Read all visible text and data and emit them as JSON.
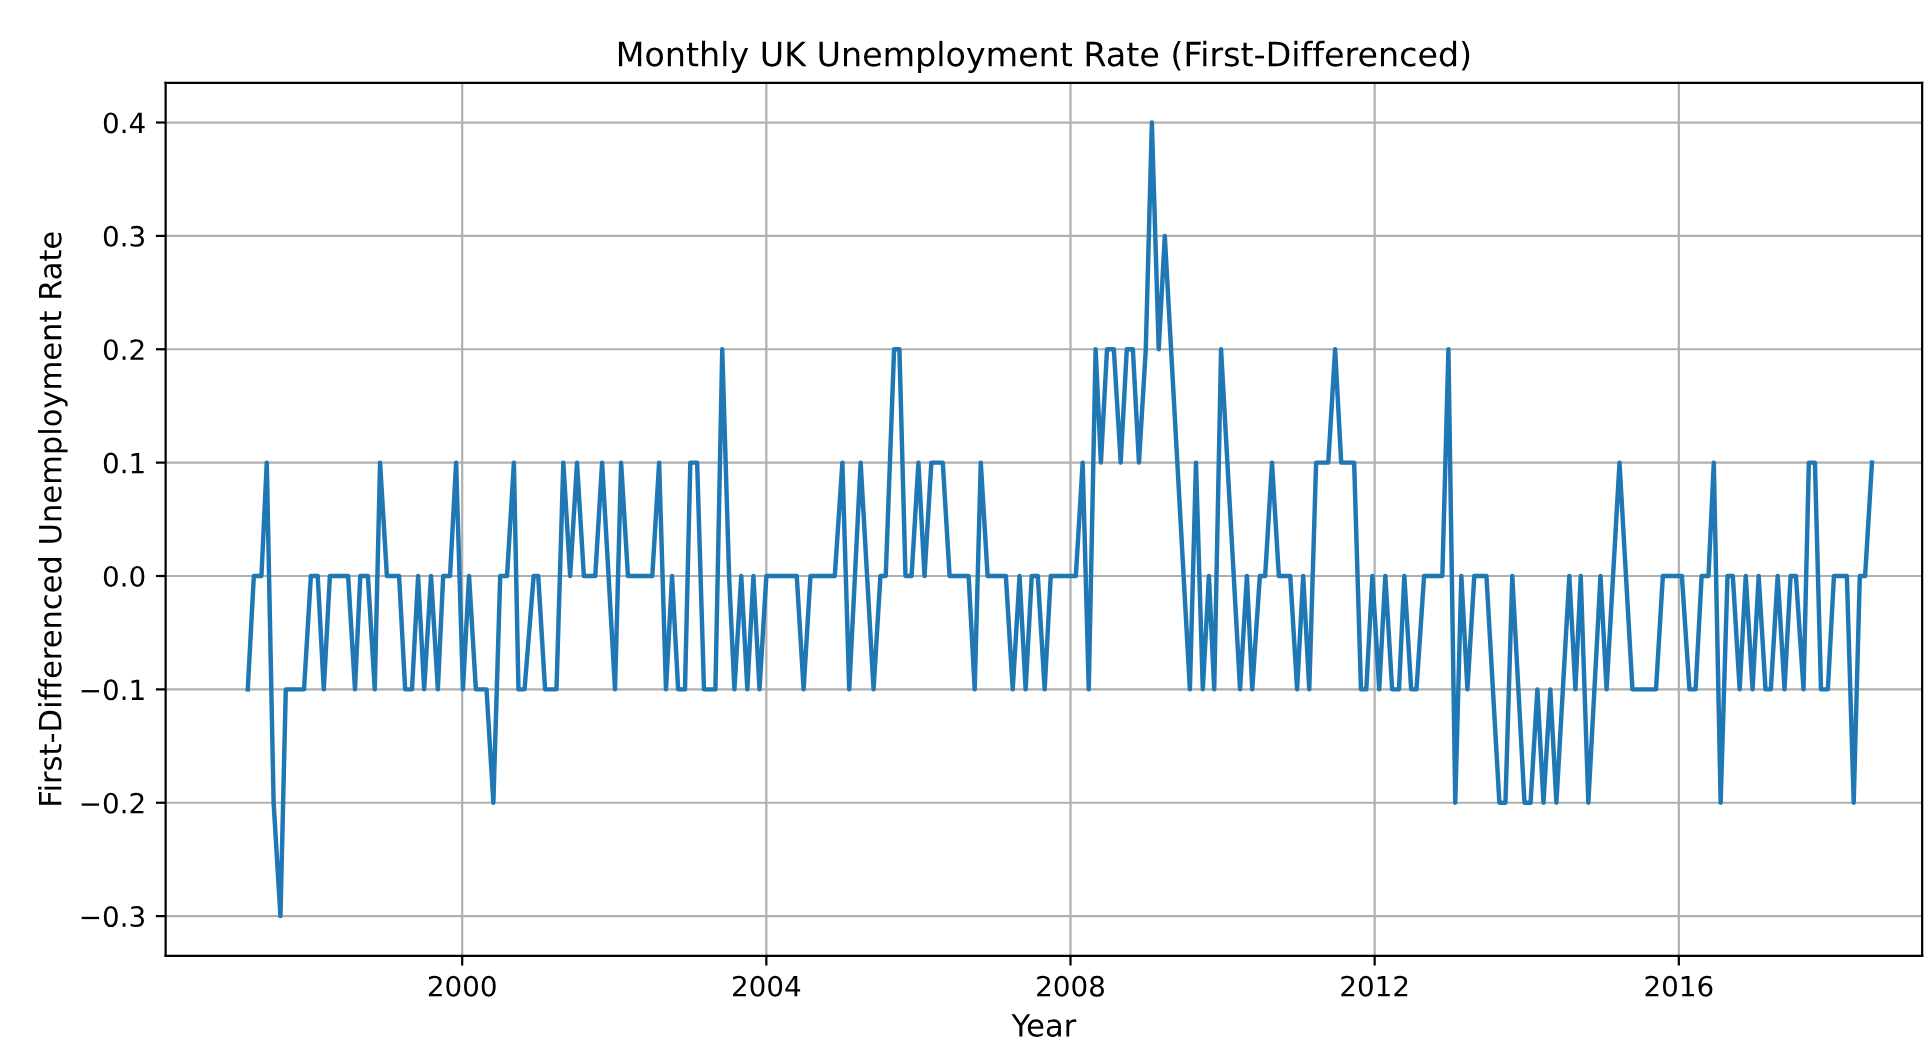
{
  "chart_data": {
    "type": "line",
    "title": "Monthly UK Unemployment Rate (First-Differenced)",
    "xlabel": "Year",
    "ylabel": "First-Differenced Unemployment Rate",
    "x": [
      1997.18,
      1997.26,
      1997.36,
      1997.43,
      1997.52,
      1997.61,
      1997.68,
      1997.92,
      1998.01,
      1998.1,
      1998.18,
      1998.26,
      1998.5,
      1998.59,
      1998.66,
      1998.76,
      1998.85,
      1998.92,
      1999.01,
      1999.17,
      1999.25,
      1999.34,
      1999.42,
      1999.5,
      1999.59,
      1999.68,
      1999.75,
      1999.84,
      1999.92,
      2000.01,
      2000.09,
      2000.18,
      2000.32,
      2000.41,
      2000.5,
      2000.59,
      2000.68,
      2000.74,
      2000.82,
      2000.94,
      2001.0,
      2001.09,
      2001.24,
      2001.33,
      2001.42,
      2001.51,
      2001.6,
      2001.75,
      2001.84,
      2002.01,
      2002.09,
      2002.18,
      2002.5,
      2002.59,
      2002.68,
      2002.76,
      2002.84,
      2002.93,
      2003.0,
      2003.09,
      2003.18,
      2003.33,
      2003.42,
      2003.51,
      2003.58,
      2003.67,
      2003.75,
      2003.83,
      2003.91,
      2004.0,
      2004.4,
      2004.49,
      2004.58,
      2004.9,
      2005.0,
      2005.09,
      2005.24,
      2005.41,
      2005.5,
      2005.57,
      2005.68,
      2005.75,
      2005.83,
      2005.91,
      2006.0,
      2006.08,
      2006.17,
      2006.32,
      2006.41,
      2006.66,
      2006.74,
      2006.82,
      2006.91,
      2007.15,
      2007.24,
      2007.33,
      2007.41,
      2007.49,
      2007.57,
      2007.66,
      2007.74,
      2008.07,
      2008.16,
      2008.24,
      2008.33,
      2008.4,
      2008.48,
      2008.57,
      2008.66,
      2008.74,
      2008.82,
      2008.9,
      2008.99,
      2009.07,
      2009.16,
      2009.24,
      2009.57,
      2009.65,
      2009.74,
      2009.82,
      2009.89,
      2009.98,
      2010.23,
      2010.32,
      2010.39,
      2010.49,
      2010.56,
      2010.65,
      2010.74,
      2010.89,
      2010.98,
      2011.06,
      2011.14,
      2011.23,
      2011.39,
      2011.48,
      2011.56,
      2011.73,
      2011.82,
      2011.89,
      2011.97,
      2012.06,
      2012.14,
      2012.23,
      2012.32,
      2012.39,
      2012.48,
      2012.55,
      2012.65,
      2012.89,
      2012.97,
      2013.06,
      2013.14,
      2013.22,
      2013.31,
      2013.47,
      2013.64,
      2013.72,
      2013.81,
      2013.97,
      2014.05,
      2014.14,
      2014.22,
      2014.31,
      2014.39,
      2014.56,
      2014.64,
      2014.71,
      2014.81,
      2014.97,
      2015.05,
      2015.22,
      2015.39,
      2015.7,
      2015.79,
      2016.04,
      2016.14,
      2016.22,
      2016.3,
      2016.39,
      2016.46,
      2016.55,
      2016.64,
      2016.71,
      2016.8,
      2016.88,
      2016.97,
      2017.05,
      2017.14,
      2017.21,
      2017.3,
      2017.39,
      2017.47,
      2017.54,
      2017.64,
      2017.71,
      2017.79,
      2017.87,
      2017.96,
      2018.04,
      2018.21,
      2018.3,
      2018.38,
      2018.45,
      2018.54
    ],
    "series": [
      {
        "color": "#1f77b4",
        "values": [
          -0.1,
          0,
          0,
          0.1,
          -0.2,
          -0.3,
          -0.1,
          -0.1,
          0,
          0,
          -0.1,
          0,
          0,
          -0.1,
          0,
          0,
          -0.1,
          0.1,
          0,
          0,
          -0.1,
          -0.1,
          0,
          -0.1,
          0,
          -0.1,
          0,
          0,
          0.1,
          -0.1,
          0,
          -0.1,
          -0.1,
          -0.2,
          0,
          0,
          0.1,
          -0.1,
          -0.1,
          0,
          0,
          -0.1,
          -0.1,
          0.1,
          0,
          0.1,
          0,
          0,
          0.1,
          -0.1,
          0.1,
          0,
          0,
          0.1,
          -0.1,
          0,
          -0.1,
          -0.1,
          0.1,
          0.1,
          -0.1,
          -0.1,
          0.2,
          0,
          -0.1,
          0,
          -0.1,
          0,
          -0.1,
          0,
          0,
          -0.1,
          0,
          0,
          0.1,
          -0.1,
          0.1,
          -0.1,
          0,
          0,
          0.2,
          0.2,
          0,
          0,
          0.1,
          0,
          0.1,
          0.1,
          0,
          0,
          -0.1,
          0.1,
          0,
          0,
          -0.1,
          0,
          -0.1,
          0,
          0,
          -0.1,
          0,
          0,
          0.1,
          -0.1,
          0.2,
          0.1,
          0.2,
          0.2,
          0.1,
          0.2,
          0.2,
          0.1,
          0.2,
          0.4,
          0.2,
          0.3,
          -0.1,
          0.1,
          -0.1,
          0,
          -0.1,
          0.2,
          -0.1,
          0,
          -0.1,
          0,
          0,
          0.1,
          0,
          0,
          -0.1,
          0,
          -0.1,
          0.1,
          0.1,
          0.2,
          0.1,
          0.1,
          -0.1,
          -0.1,
          0,
          -0.1,
          0,
          -0.1,
          -0.1,
          0,
          -0.1,
          -0.1,
          0,
          0,
          0.2,
          -0.2,
          0,
          -0.1,
          0,
          0,
          -0.2,
          -0.2,
          0,
          -0.2,
          -0.2,
          -0.1,
          -0.2,
          -0.1,
          -0.2,
          0,
          -0.1,
          0,
          -0.2,
          0,
          -0.1,
          0.1,
          -0.1,
          -0.1,
          0,
          0,
          -0.1,
          -0.1,
          0,
          0,
          0.1,
          -0.2,
          0,
          0,
          -0.1,
          0,
          -0.1,
          0,
          -0.1,
          -0.1,
          0,
          -0.1,
          0,
          0,
          -0.1,
          0.1,
          0.1,
          -0.1,
          -0.1,
          0,
          0,
          -0.2,
          0,
          0,
          0.1
        ]
      }
    ],
    "xlim": [
      1996.1,
      2019.2
    ],
    "xticks": [
      2000,
      2004,
      2008,
      2012,
      2016
    ],
    "ylim": [
      -0.335,
      0.435
    ],
    "yticks": [
      {
        "value": -0.3,
        "label": "−0.3"
      },
      {
        "value": -0.2,
        "label": "−0.2"
      },
      {
        "value": -0.1,
        "label": "−0.1"
      },
      {
        "value": 0.0,
        "label": "0.0"
      },
      {
        "value": 0.1,
        "label": "0.1"
      },
      {
        "value": 0.2,
        "label": "0.2"
      },
      {
        "value": 0.3,
        "label": "0.3"
      },
      {
        "value": 0.4,
        "label": "0.4"
      }
    ],
    "grid": true
  }
}
